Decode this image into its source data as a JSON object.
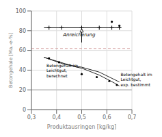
{
  "chart_data": {
    "type": "line",
    "xlabel": "Produktausringen [kg/kg]",
    "ylabel": "Betongehale [Ma.-e-%]",
    "xlim": [
      0.3,
      0.7
    ],
    "ylim": [
      0,
      100
    ],
    "xticks": [
      {
        "value": 0.3,
        "label": "0,3"
      },
      {
        "value": 0.4,
        "label": "0,4"
      },
      {
        "value": 0.5,
        "label": "0,5"
      },
      {
        "value": 0.6,
        "label": "0,6"
      },
      {
        "value": 0.7,
        "label": "0,7"
      }
    ],
    "yticks": [
      0,
      20,
      40,
      60,
      80,
      100
    ],
    "grid": true,
    "series": [
      {
        "type": "line",
        "color": "#222222",
        "x": [
          0.35,
          0.65
        ],
        "values": [
          83,
          83
        ]
      },
      {
        "type": "scatter",
        "marker": "plus",
        "color": "black",
        "x": [
          0.37,
          0.42,
          0.5,
          0.57,
          0.62,
          0.65
        ],
        "values": [
          83,
          83,
          83,
          83,
          83,
          83
        ]
      },
      {
        "type": "scatter",
        "marker": "dot",
        "color": "black",
        "x": [
          0.62,
          0.65
        ],
        "values": [
          89,
          85
        ]
      },
      {
        "type": "line",
        "color": "#222222",
        "x": [
          0.35,
          0.43,
          0.5,
          0.57,
          0.65
        ],
        "values": [
          53,
          46,
          43,
          38,
          28
        ]
      },
      {
        "type": "line",
        "color": "#222222",
        "x": [
          0.35,
          0.48,
          0.5,
          0.57,
          0.63,
          0.65
        ],
        "values": [
          53,
          43,
          42,
          35,
          27,
          24
        ]
      },
      {
        "type": "scatter",
        "marker": "dot",
        "color": "black",
        "x": [
          0.37,
          0.41,
          0.5,
          0.56,
          0.61,
          0.64
        ],
        "values": [
          52,
          48,
          36,
          33,
          29,
          25
        ]
      }
    ],
    "reference_lines": [
      {
        "y": 62,
        "color": "#d4a0a0",
        "line_style": "dashed"
      },
      {
        "y": 20,
        "color": "#bbbbbb",
        "line_style": "solid"
      }
    ],
    "annotations": [
      {
        "text": "Anreicherung",
        "x": 0.49,
        "y": 73
      },
      {
        "text": "Betongehalt im\nLeichtgut,\nberechnet",
        "x": 0.36,
        "y": 47
      },
      {
        "text": "Betongehalt im\nLeichtgut,\nexp. bestimmt",
        "x": 0.655,
        "y": 38
      }
    ],
    "arrows": [
      {
        "x": 0.5,
        "y": 68,
        "x_end": 0.5,
        "y_end": 82
      }
    ]
  }
}
